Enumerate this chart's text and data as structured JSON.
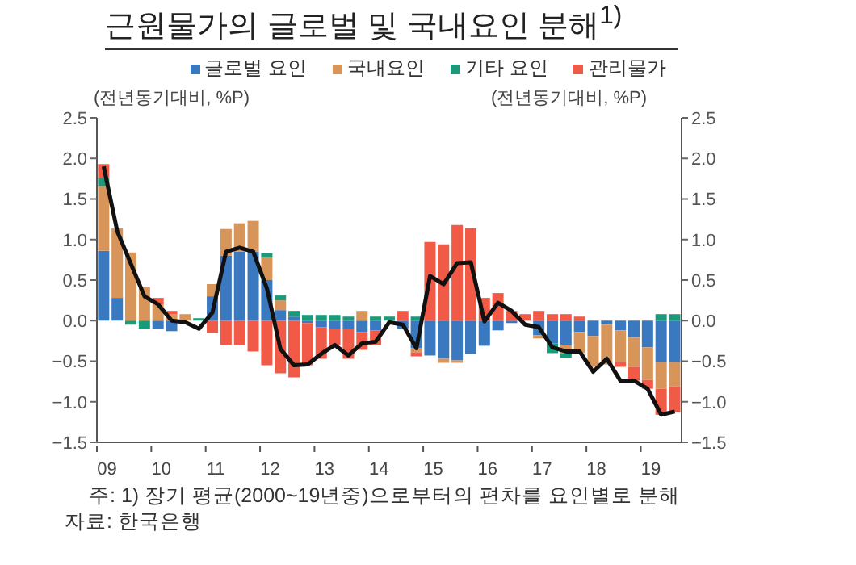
{
  "chart_data": {
    "type": "bar",
    "stacked": true,
    "title": "근원물가의 글로벌 및 국내요인 분해$^{1)}$",
    "ylabel": "(전년동기대비, %P)",
    "y2label": "(전년동기대비, %P)",
    "categories": [
      "09",
      null,
      null,
      null,
      "10",
      null,
      null,
      null,
      "11",
      null,
      null,
      null,
      "12",
      null,
      null,
      null,
      "13",
      null,
      null,
      null,
      "14",
      null,
      null,
      null,
      "15",
      null,
      null,
      null,
      "16",
      null,
      null,
      null,
      "17",
      null,
      null,
      null,
      "18",
      null,
      null,
      null,
      "19",
      null,
      null
    ],
    "series": [
      {
        "name": "글로벌 요인",
        "color": "#3a78c0",
        "values": [
          0.86,
          0.28,
          0,
          0,
          -0.1,
          -0.13,
          null,
          null,
          0.3,
          0.8,
          0.85,
          0.85,
          0.5,
          0.13,
          0.05,
          -0.03,
          -0.08,
          -0.1,
          -0.1,
          -0.14,
          -0.12,
          null,
          -0.1,
          -0.34,
          -0.43,
          -0.47,
          -0.49,
          -0.41,
          -0.31,
          -0.12,
          -0.03,
          null,
          -0.18,
          -0.28,
          -0.3,
          -0.14,
          -0.19,
          -0.05,
          -0.12,
          -0.21,
          -0.33,
          -0.51,
          -0.51
        ]
      },
      {
        "name": "국내요인",
        "color": "#d8955a",
        "values": [
          0.8,
          0.86,
          0.84,
          0.41,
          0.2,
          0.08,
          0.08,
          0,
          0.15,
          0.33,
          0.35,
          0.38,
          0.28,
          0.12,
          0,
          0,
          0,
          0,
          0,
          0.12,
          0,
          0,
          0,
          -0.05,
          0,
          -0.05,
          -0.03,
          0,
          0,
          0,
          0,
          0,
          -0.04,
          0,
          -0.1,
          -0.26,
          -0.38,
          -0.49,
          -0.39,
          -0.36,
          -0.4,
          -0.33,
          -0.3
        ]
      },
      {
        "name": "기타 요인",
        "color": "#1a9a78",
        "values": [
          0.1,
          0,
          -0.05,
          -0.1,
          0,
          0,
          0,
          0.03,
          0,
          0,
          0,
          0,
          0.05,
          0.06,
          0.07,
          0.07,
          0.07,
          0.07,
          0.05,
          0,
          0.05,
          0.05,
          0,
          0.05,
          0,
          0,
          0,
          0,
          0,
          0,
          0,
          0,
          0,
          -0.12,
          -0.06,
          0,
          0,
          0,
          0,
          0,
          0,
          0.08,
          0.08
        ]
      },
      {
        "name": "관리물가",
        "color": "#f05a46",
        "values": [
          0.17,
          0,
          0,
          0,
          0.08,
          0.04,
          0,
          0,
          -0.15,
          -0.3,
          -0.3,
          -0.38,
          -0.55,
          -0.65,
          -0.7,
          -0.52,
          -0.39,
          -0.2,
          -0.37,
          -0.22,
          -0.18,
          0,
          0.12,
          -0.05,
          0.97,
          0.94,
          1.18,
          1.14,
          0.28,
          0.34,
          0.12,
          0.08,
          0.12,
          0.08,
          0.08,
          0.05,
          0,
          0,
          -0.06,
          -0.17,
          -0.11,
          -0.32,
          -0.32
        ]
      },
      {
        "type": "line",
        "color": "#111111",
        "values": [
          1.9,
          1.1,
          0.7,
          0.3,
          0.2,
          0,
          -0.02,
          -0.1,
          0.1,
          0.85,
          0.9,
          0.85,
          0.4,
          -0.35,
          -0.55,
          -0.54,
          -0.41,
          -0.3,
          -0.43,
          -0.28,
          -0.26,
          -0.02,
          -0.05,
          -0.34,
          0.55,
          0.45,
          0.71,
          0.72,
          -0.01,
          0.22,
          0.12,
          -0.05,
          -0.08,
          -0.33,
          -0.38,
          -0.38,
          -0.63,
          -0.47,
          -0.74,
          -0.74,
          -0.84,
          -1.16,
          -1.12
        ]
      }
    ],
    "ylim": [
      -1.5,
      2.5
    ],
    "yticks": [
      {
        "value": -1.5,
        "label": "−1.5"
      },
      {
        "value": -1,
        "label": "−1.0"
      },
      {
        "value": -0.5,
        "label": "−0.5"
      },
      {
        "value": 0,
        "label": "0.0"
      },
      0.5,
      {
        "value": 1,
        "label": "1.0"
      },
      1.5,
      {
        "value": 2,
        "label": "2.0"
      },
      2.5
    ],
    "y2lim": [
      -1.5,
      2.5
    ],
    "y2ticks": [
      {
        "value": -1.5,
        "label": "−1.5"
      },
      {
        "value": -1,
        "label": "−1.0"
      },
      {
        "value": -0.5,
        "label": "−0.5"
      },
      {
        "value": 0,
        "label": "0.0"
      },
      0.5,
      {
        "value": 1,
        "label": "1.0"
      },
      1.5,
      {
        "value": 2,
        "label": "2.0"
      },
      2.5
    ],
    "legend": "top",
    "grid": false,
    "marker": "none",
    "annotations": [
      "주: 1) 장기 평균(2000~19년중)으로부터의 편차를 요인별로 분해",
      "자료: 한국은행"
    ]
  }
}
